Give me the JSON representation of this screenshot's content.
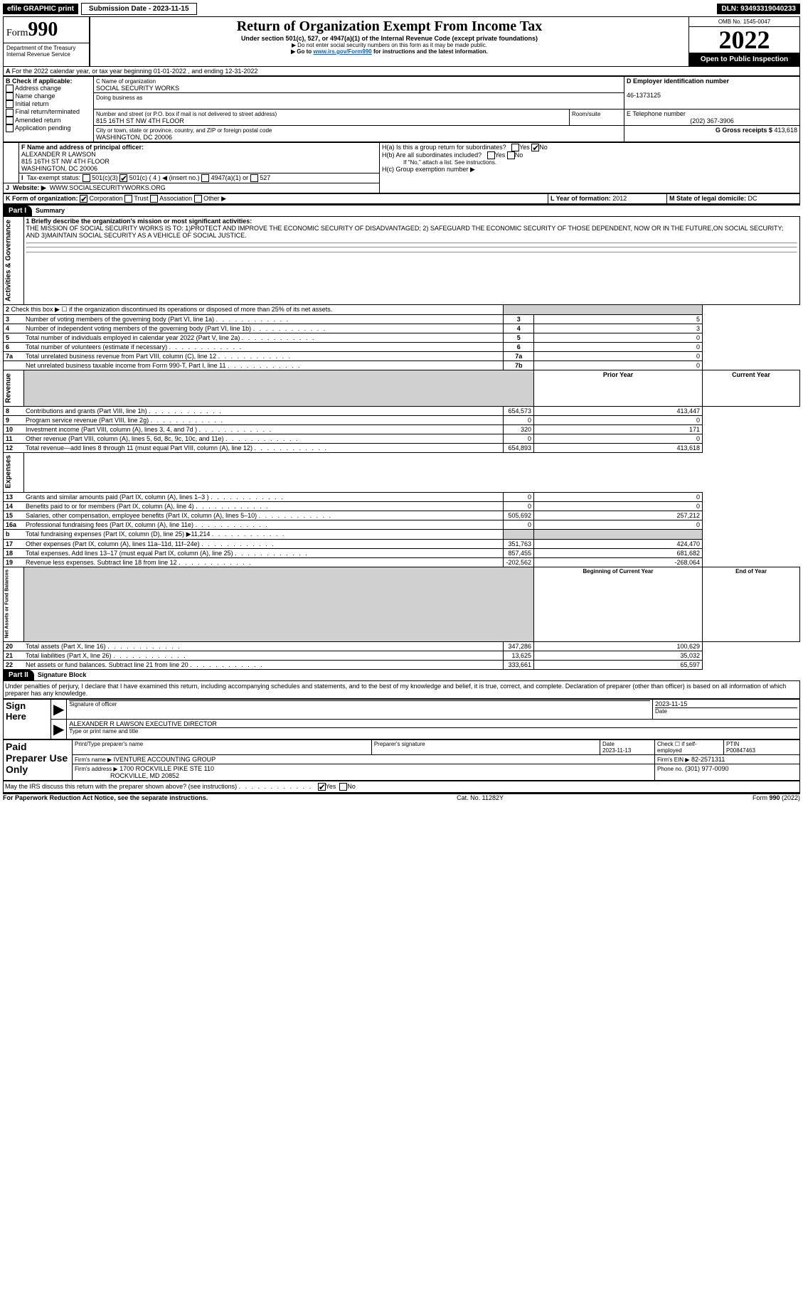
{
  "topbar": {
    "efile": "efile GRAPHIC print",
    "submission_label": "Submission Date - 2023-11-15",
    "dln_label": "DLN: 93493319040233"
  },
  "header": {
    "form_word": "Form",
    "form_num": "990",
    "title": "Return of Organization Exempt From Income Tax",
    "subtitle": "Under section 501(c), 527, or 4947(a)(1) of the Internal Revenue Code (except private foundations)",
    "notice1": "Do not enter social security numbers on this form as it may be made public.",
    "notice2_pre": "Go to ",
    "notice2_link": "www.irs.gov/Form990",
    "notice2_post": " for instructions and the latest information.",
    "dept": "Department of the Treasury",
    "irs": "Internal Revenue Service",
    "omb": "OMB No. 1545-0047",
    "year": "2022",
    "open": "Open to Public Inspection"
  },
  "box_a": "For the 2022 calendar year, or tax year beginning 01-01-2022    , and ending 12-31-2022",
  "box_b": {
    "label": "B Check if applicable:",
    "items": [
      "Address change",
      "Name change",
      "Initial return",
      "Final return/terminated",
      "Amended return",
      "Application pending"
    ]
  },
  "box_c": {
    "label_name": "C Name of organization",
    "org": "SOCIAL SECURITY WORKS",
    "dba": "Doing business as",
    "addr_lbl": "Number and street (or P.O. box if mail is not delivered to street address)",
    "room_lbl": "Room/suite",
    "addr": "815 16TH ST NW 4TH FLOOR",
    "city_lbl": "City or town, state or province, country, and ZIP or foreign postal code",
    "city": "WASHINGTON, DC  20006"
  },
  "box_d": {
    "label": "D Employer identification number",
    "val": "46-1373125"
  },
  "box_e": {
    "label": "E Telephone number",
    "val": "(202) 367-3906"
  },
  "box_g": {
    "label": "G Gross receipts $",
    "val": "413,618"
  },
  "box_f": {
    "label": "F  Name and address of principal officer:",
    "name": "ALEXANDER R LAWSON",
    "addr1": "815 16TH ST NW 4TH FLOOR",
    "addr2": "WASHINGTON, DC  20006"
  },
  "box_h": {
    "a": "H(a)  Is this a group return for subordinates?",
    "b": "H(b)  Are all subordinates included?",
    "note": "If \"No,\" attach a list. See instructions.",
    "c": "H(c)  Group exemption number ▶"
  },
  "box_i": {
    "label": "Tax-exempt status:",
    "opts": {
      "a": "501(c)(3)",
      "b_pre": "501(c) ( 4 ) ",
      "b_post": "(insert no.)",
      "c": "4947(a)(1) or",
      "d": "527"
    }
  },
  "box_j": {
    "label": "Website: ▶",
    "val": "WWW.SOCIALSECURITYWORKS.ORG"
  },
  "box_k": {
    "label": "K Form of organization:",
    "opts": [
      "Corporation",
      "Trust",
      "Association",
      "Other ▶"
    ]
  },
  "box_l": {
    "label": "L Year of formation:",
    "val": "2012"
  },
  "box_m": {
    "label": "M State of legal domicile:",
    "val": "DC"
  },
  "part1": "Summary",
  "mission_lbl": "1  Briefly describe the organization's mission or most significant activities:",
  "mission": "THE MISSION OF SOCIAL SECURITY WORKS IS TO: 1)PROTECT AND IMPROVE THE ECONOMIC SECURITY OF DISADVANTAGED; 2) SAFEGUARD THE ECONOMIC SECURITY OF THOSE DEPENDENT, NOW OR IN THE FUTURE,ON SOCIAL SECURITY; AND 3)MAINTAIN SOCIAL SECURITY AS A VEHICLE OF SOCIAL JUSTICE.",
  "gov_rows": [
    {
      "n": "2",
      "t": "Check this box ▶ ☐  if the organization discontinued its operations or disposed of more than 25% of its net assets.",
      "boxn": "",
      "v": ""
    },
    {
      "n": "3",
      "t": "Number of voting members of the governing body (Part VI, line 1a)",
      "boxn": "3",
      "v": "5"
    },
    {
      "n": "4",
      "t": "Number of independent voting members of the governing body (Part VI, line 1b)",
      "boxn": "4",
      "v": "3"
    },
    {
      "n": "5",
      "t": "Total number of individuals employed in calendar year 2022 (Part V, line 2a)",
      "boxn": "5",
      "v": "0"
    },
    {
      "n": "6",
      "t": "Total number of volunteers (estimate if necessary)",
      "boxn": "6",
      "v": "0"
    },
    {
      "n": "7a",
      "t": "Total unrelated business revenue from Part VIII, column (C), line 12",
      "boxn": "7a",
      "v": "0"
    },
    {
      "n": "",
      "t": "Net unrelated business taxable income from Form 990-T, Part I, line 11",
      "boxn": "7b",
      "v": "0"
    }
  ],
  "yearcols": {
    "prior": "Prior Year",
    "curr": "Current Year"
  },
  "rev_rows": [
    {
      "n": "8",
      "t": "Contributions and grants (Part VIII, line 1h)",
      "p": "654,573",
      "c": "413,447"
    },
    {
      "n": "9",
      "t": "Program service revenue (Part VIII, line 2g)",
      "p": "0",
      "c": "0"
    },
    {
      "n": "10",
      "t": "Investment income (Part VIII, column (A), lines 3, 4, and 7d )",
      "p": "320",
      "c": "171"
    },
    {
      "n": "11",
      "t": "Other revenue (Part VIII, column (A), lines 5, 6d, 8c, 9c, 10c, and 11e)",
      "p": "0",
      "c": "0"
    },
    {
      "n": "12",
      "t": "Total revenue—add lines 8 through 11 (must equal Part VIII, column (A), line 12)",
      "p": "654,893",
      "c": "413,618"
    }
  ],
  "exp_rows": [
    {
      "n": "13",
      "t": "Grants and similar amounts paid (Part IX, column (A), lines 1–3 )",
      "p": "0",
      "c": "0"
    },
    {
      "n": "14",
      "t": "Benefits paid to or for members (Part IX, column (A), line 4)",
      "p": "0",
      "c": "0"
    },
    {
      "n": "15",
      "t": "Salaries, other compensation, employee benefits (Part IX, column (A), lines 5–10)",
      "p": "505,692",
      "c": "257,212"
    },
    {
      "n": "16a",
      "t": "Professional fundraising fees (Part IX, column (A), line 11e)",
      "p": "0",
      "c": "0"
    },
    {
      "n": "b",
      "t": "Total fundraising expenses (Part IX, column (D), line 25) ▶11,214",
      "p": "",
      "c": "",
      "shade": true
    },
    {
      "n": "17",
      "t": "Other expenses (Part IX, column (A), lines 11a–11d, 11f–24e)",
      "p": "351,763",
      "c": "424,470"
    },
    {
      "n": "18",
      "t": "Total expenses. Add lines 13–17 (must equal Part IX, column (A), line 25)",
      "p": "857,455",
      "c": "681,682"
    },
    {
      "n": "19",
      "t": "Revenue less expenses. Subtract line 18 from line 12",
      "p": "-202,562",
      "c": "-268,064"
    }
  ],
  "na_cols": {
    "boy": "Beginning of Current Year",
    "eoy": "End of Year"
  },
  "na_rows": [
    {
      "n": "20",
      "t": "Total assets (Part X, line 16)",
      "p": "347,286",
      "c": "100,629"
    },
    {
      "n": "21",
      "t": "Total liabilities (Part X, line 26)",
      "p": "13,625",
      "c": "35,032"
    },
    {
      "n": "22",
      "t": "Net assets or fund balances. Subtract line 21 from line 20",
      "p": "333,661",
      "c": "65,597"
    }
  ],
  "side_labels": {
    "gov": "Activities & Governance",
    "rev": "Revenue",
    "exp": "Expenses",
    "na": "Net Assets or Fund Balances"
  },
  "part2": "Signature Block",
  "penalties": "Under penalties of perjury, I declare that I have examined this return, including accompanying schedules and statements, and to the best of my knowledge and belief, it is true, correct, and complete. Declaration of preparer (other than officer) is based on all information of which preparer has any knowledge.",
  "sign": {
    "here": "Sign Here",
    "sig_off": "Signature of officer",
    "date_lbl": "Date",
    "sig_date": "2023-11-15",
    "name": "ALEXANDER R LAWSON  EXECUTIVE DIRECTOR",
    "name_lbl": "Type or print name and title"
  },
  "paid": {
    "title": "Paid Preparer Use Only",
    "col1": "Print/Type preparer's name",
    "col2": "Preparer's signature",
    "col3": "Date",
    "col4": "Check ☐ if self-employed",
    "col5": "PTIN",
    "date": "2023-11-13",
    "ptin": "P00847463",
    "firm_lbl": "Firm's name   ▶",
    "firm": "IVENTURE ACCOUNTING GROUP",
    "ein_lbl": "Firm's EIN ▶",
    "ein": "82-2571311",
    "addr_lbl": "Firm's address ▶",
    "addr1": "1700 ROCKVILLE PIKE STE 110",
    "addr2": "ROCKVILLE, MD  20852",
    "ph_lbl": "Phone no.",
    "ph": "(301) 977-0090"
  },
  "discuss": "May the IRS discuss this return with the preparer shown above? (see instructions)",
  "foot": {
    "left": "For Paperwork Reduction Act Notice, see the separate instructions.",
    "mid": "Cat. No. 11282Y",
    "right": "Form 990 (2022)"
  }
}
